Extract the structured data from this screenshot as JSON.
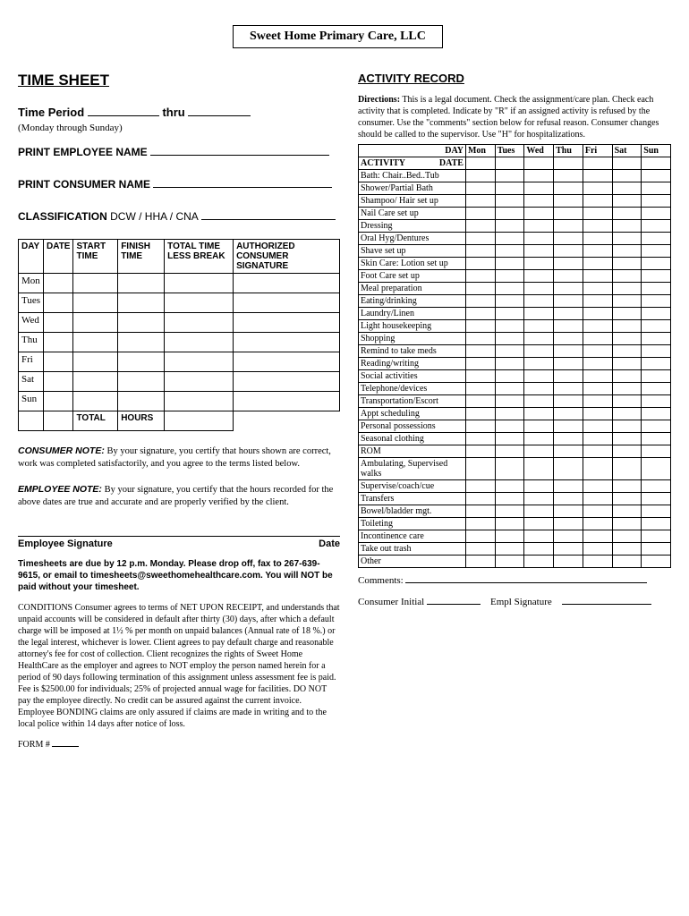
{
  "company": "Sweet Home Primary Care, LLC",
  "left": {
    "title": "TIME SHEET",
    "time_period_label": "Time Period",
    "thru": "thru",
    "week_note": "(Monday through Sunday)",
    "emp_name_label": "PRINT EMPLOYEE NAME",
    "cons_name_label": "PRINT CONSUMER NAME",
    "class_label": "CLASSIFICATION",
    "class_opts": "DCW / HHA / CNA",
    "table": {
      "cols": [
        "DAY",
        "DATE",
        "START TIME",
        "FINISH TIME",
        "TOTAL TIME LESS BREAK",
        "AUTHORIZED CONSUMER SIGNATURE"
      ],
      "days": [
        "Mon",
        "Tues",
        "Wed",
        "Thu",
        "Fri",
        "Sat",
        "Sun"
      ],
      "total_label": "TOTAL",
      "hours_label": "HOURS"
    },
    "consumer_note_label": "CONSUMER NOTE:",
    "consumer_note": "By your signature, you certify that hours shown are correct, work was completed satisfactorily, and you agree to the terms listed below.",
    "employee_note_label": "EMPLOYEE NOTE:",
    "employee_note": "By your signature, you certify that the hours recorded for the above dates are true and accurate and are properly verified by the client.",
    "sig_emp": "Employee Signature",
    "sig_date": "Date",
    "due": "Timesheets are due by 12 p.m. Monday. Please drop off, fax to 267-639-9615, or email to timesheets@sweethomehealthcare.com. You will NOT be paid without your timesheet.",
    "conditions": "CONDITIONS Consumer agrees to terms of NET UPON RECEIPT, and understands that unpaid accounts will be considered in default after thirty (30) days, after which a default charge will be imposed at 1½ % per month on unpaid balances (Annual rate of 18 %.) or the legal interest, whichever is lower. Client agrees to pay default charge and reasonable attorney's fee for cost of collection. Client recognizes the rights of Sweet Home HealthCare as the employer and agrees to NOT employ the person named herein for a period of 90 days following termination of this assignment unless assessment fee is paid. Fee is $2500.00 for individuals; 25% of projected annual wage for facilities. DO NOT pay the employee directly. No credit can be assured against the current invoice. Employee BONDING claims are only assured if claims are made in writing and to the local police within 14 days after notice of loss.",
    "form_label": "FORM #"
  },
  "right": {
    "title": "ACTIVITY RECORD",
    "directions_label": "Directions:",
    "directions": "This is a legal document. Check the assignment/care plan. Check each activity that is completed. Indicate by \"R\" if an assigned activity is refused by the consumer. Use the \"comments\" section below for refusal reason. Consumer changes should be called to the supervisor. Use \"H\" for hospitalizations.",
    "header": {
      "day": "DAY",
      "activity": "ACTIVITY",
      "date": "DATE",
      "days": [
        "Mon",
        "Tues",
        "Wed",
        "Thu",
        "Fri",
        "Sat",
        "Sun"
      ]
    },
    "activities": [
      "Bath: Chair..Bed..Tub",
      "Shower/Partial Bath",
      "Shampoo/ Hair set up",
      "Nail Care set up",
      "Dressing",
      "Oral Hyg/Dentures",
      "Shave set up",
      "Skin Care: Lotion set up",
      "Foot Care set up",
      "Meal preparation",
      "Eating/drinking",
      "Laundry/Linen",
      "Light housekeeping",
      "Shopping",
      "Remind to take meds",
      "Reading/writing",
      "Social activities",
      "Telephone/devices",
      "Transportation/Escort",
      "Appt scheduling",
      "Personal possessions",
      "Seasonal clothing",
      "ROM",
      "Ambulating, Supervised walks",
      "Supervise/coach/cue",
      "Transfers",
      "Bowel/bladder mgt.",
      "Toileting",
      "Incontinence care",
      "Take out trash",
      "Other"
    ],
    "comments_label": "Comments:",
    "consumer_initial": "Consumer Initial",
    "empl_sig": "Empl Signature"
  }
}
